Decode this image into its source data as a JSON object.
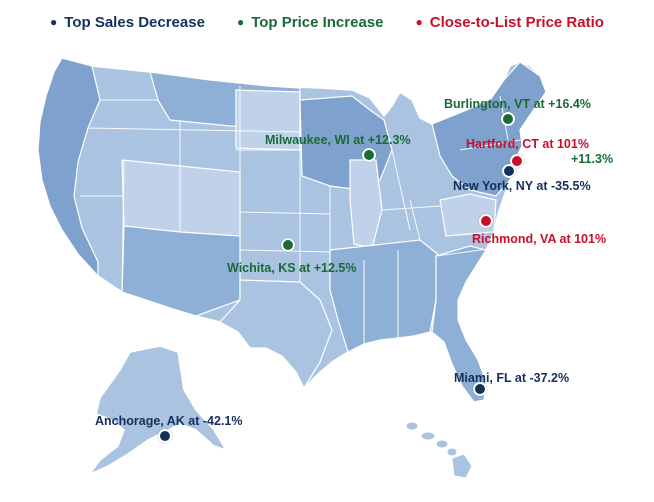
{
  "legend": {
    "sales_decrease": {
      "label": "Top Sales Decrease",
      "color": "#14305c"
    },
    "price_increase": {
      "label": "Top Price Increase",
      "color": "#1a6a38"
    },
    "ratio": {
      "label": "Close-to-List Price Ratio",
      "color": "#c8102e"
    }
  },
  "colors": {
    "state_light": "#a9c3e0",
    "state_mid": "#8fb0d6",
    "state_dark": "#7ea2cd",
    "state_pale": "#bfd2ea",
    "border": "#ffffff"
  },
  "cities": [
    {
      "id": "burlington",
      "label": "Burlington, VT at +16.4%",
      "category": "price_increase"
    },
    {
      "id": "milwaukee",
      "label": "Milwaukee, WI at +12.3%",
      "category": "price_increase"
    },
    {
      "id": "hartford",
      "label": "Hartford, CT at 101%",
      "category": "ratio"
    },
    {
      "id": "hartford-note",
      "label": "+11.3%",
      "category": "price_increase"
    },
    {
      "id": "newyork",
      "label": "New York, NY at -35.5%",
      "category": "sales_decrease"
    },
    {
      "id": "richmond",
      "label": "Richmond, VA at 101%",
      "category": "ratio"
    },
    {
      "id": "wichita",
      "label": "Wichita, KS at +12.5%",
      "category": "price_increase"
    },
    {
      "id": "miami",
      "label": "Miami, FL at -37.2%",
      "category": "sales_decrease"
    },
    {
      "id": "anchorage",
      "label": "Anchorage, AK at -42.1%",
      "category": "sales_decrease"
    }
  ]
}
